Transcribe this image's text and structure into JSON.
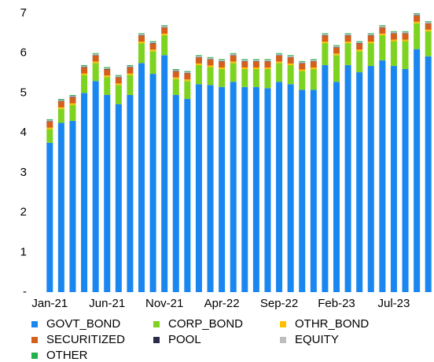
{
  "chart_data": {
    "type": "bar",
    "stacked": true,
    "categories": [
      "Jan-21",
      null,
      null,
      null,
      null,
      "Jun-21",
      null,
      null,
      null,
      null,
      "Nov-21",
      null,
      null,
      null,
      null,
      "Apr-22",
      null,
      null,
      null,
      null,
      "Sep-22",
      null,
      null,
      null,
      null,
      "Feb-23",
      null,
      null,
      null,
      null,
      "Jul-23",
      null,
      null,
      null
    ],
    "ylim": [
      0,
      7
    ],
    "yticks": [
      {
        "value": 0,
        "label": "-"
      },
      1,
      2,
      3,
      4,
      5,
      6,
      7
    ],
    "grid": false,
    "legend": "bottom",
    "series": [
      {
        "name": "GOVT_BOND",
        "color": "#1a87f0",
        "values": [
          3.75,
          4.25,
          4.3,
          5.0,
          5.3,
          4.95,
          4.72,
          4.95,
          5.75,
          5.48,
          5.95,
          4.95,
          4.85,
          5.22,
          5.2,
          5.15,
          5.28,
          5.15,
          5.15,
          5.12,
          5.28,
          5.22,
          5.08,
          5.08,
          5.7,
          5.28,
          5.7,
          5.52,
          5.68,
          5.82,
          5.68,
          5.6,
          6.1,
          5.92
        ]
      },
      {
        "name": "CORP_BOND",
        "color": "#7ed321",
        "values": [
          0.34,
          0.35,
          0.4,
          0.45,
          0.45,
          0.45,
          0.48,
          0.5,
          0.5,
          0.57,
          0.5,
          0.4,
          0.45,
          0.48,
          0.45,
          0.45,
          0.47,
          0.45,
          0.45,
          0.48,
          0.47,
          0.48,
          0.47,
          0.52,
          0.55,
          0.67,
          0.55,
          0.53,
          0.57,
          0.63,
          0.62,
          0.7,
          0.65,
          0.63
        ]
      },
      {
        "name": "OTHR_BOND",
        "color": "#ffc000",
        "values": [
          0.04,
          0.04,
          0.04,
          0.04,
          0.04,
          0.04,
          0.04,
          0.04,
          0.04,
          0.04,
          0.04,
          0.04,
          0.04,
          0.04,
          0.04,
          0.04,
          0.04,
          0.04,
          0.04,
          0.04,
          0.04,
          0.04,
          0.04,
          0.04,
          0.04,
          0.04,
          0.04,
          0.04,
          0.04,
          0.04,
          0.04,
          0.04,
          0.04,
          0.04
        ]
      },
      {
        "name": "SECURITIZED",
        "color": "#d4601e",
        "values": [
          0.15,
          0.15,
          0.15,
          0.15,
          0.15,
          0.15,
          0.15,
          0.15,
          0.15,
          0.15,
          0.15,
          0.15,
          0.15,
          0.15,
          0.15,
          0.15,
          0.15,
          0.15,
          0.15,
          0.15,
          0.15,
          0.15,
          0.15,
          0.15,
          0.15,
          0.15,
          0.15,
          0.15,
          0.15,
          0.15,
          0.15,
          0.15,
          0.15,
          0.15
        ]
      },
      {
        "name": "POOL",
        "color": "#2b2a4a",
        "values": [
          0.01,
          0.01,
          0.01,
          0.01,
          0.01,
          0.01,
          0.01,
          0.01,
          0.01,
          0.01,
          0.01,
          0.01,
          0.01,
          0.01,
          0.01,
          0.01,
          0.01,
          0.01,
          0.01,
          0.01,
          0.01,
          0.01,
          0.01,
          0.01,
          0.01,
          0.01,
          0.01,
          0.01,
          0.01,
          0.01,
          0.01,
          0.01,
          0.01,
          0.01
        ]
      },
      {
        "name": "EQUITY",
        "color": "#bdbdbd",
        "values": [
          0.03,
          0.03,
          0.03,
          0.03,
          0.03,
          0.03,
          0.03,
          0.03,
          0.03,
          0.03,
          0.03,
          0.03,
          0.03,
          0.03,
          0.03,
          0.03,
          0.03,
          0.03,
          0.03,
          0.03,
          0.03,
          0.03,
          0.03,
          0.03,
          0.03,
          0.03,
          0.03,
          0.03,
          0.03,
          0.03,
          0.03,
          0.03,
          0.03,
          0.03
        ]
      },
      {
        "name": "OTHER",
        "color": "#22b14c",
        "values": [
          0.02,
          0.02,
          0.02,
          0.02,
          0.02,
          0.02,
          0.02,
          0.02,
          0.02,
          0.02,
          0.02,
          0.02,
          0.02,
          0.02,
          0.02,
          0.02,
          0.02,
          0.02,
          0.02,
          0.02,
          0.02,
          0.02,
          0.02,
          0.02,
          0.02,
          0.02,
          0.02,
          0.02,
          0.02,
          0.02,
          0.02,
          0.02,
          0.02,
          0.02
        ]
      }
    ]
  }
}
